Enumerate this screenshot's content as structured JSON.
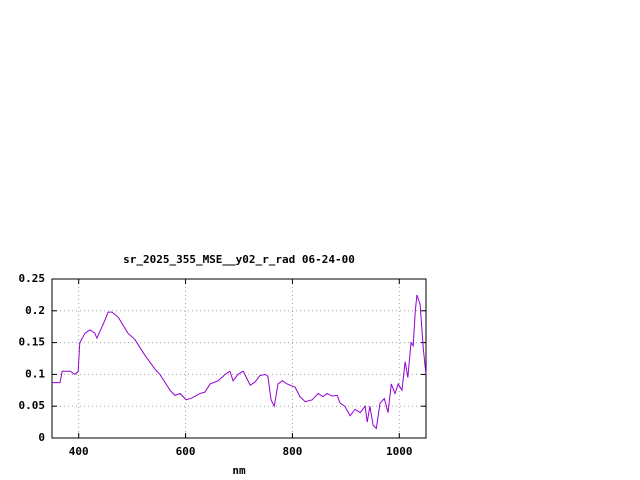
{
  "chart_data": {
    "type": "line",
    "title": "sr_2025_355_MSE__y02_r_rad 06-24-00",
    "xlabel": "nm",
    "xlim": [
      350,
      1050
    ],
    "xticks": [
      400,
      600,
      800,
      1000
    ],
    "ylim": [
      0,
      0.25
    ],
    "yticks": [
      0,
      0.05,
      0.1,
      0.15,
      0.2,
      0.25
    ],
    "grid": true,
    "series": [
      {
        "color": "#9400d3",
        "x": [
          350,
          365,
          369,
          384,
          393,
          399,
          402,
          412,
          421,
          430,
          434,
          449,
          455,
          462,
          474,
          481,
          492,
          505,
          524,
          543,
          552,
          571,
          580,
          590,
          601,
          612,
          627,
          636,
          646,
          661,
          674,
          683,
          689,
          698,
          708,
          721,
          730,
          739,
          749,
          754,
          760,
          766,
          773,
          781,
          790,
          805,
          814,
          824,
          837,
          848,
          857,
          865,
          874,
          884,
          889,
          898,
          908,
          917,
          927,
          936,
          940,
          945,
          951,
          957,
          964,
          972,
          979,
          985,
          992,
          998,
          1005,
          1011,
          1016,
          1022,
          1026,
          1030,
          1033,
          1039,
          1045,
          1050
        ],
        "values": [
          0.087,
          0.087,
          0.105,
          0.105,
          0.1,
          0.105,
          0.15,
          0.165,
          0.17,
          0.165,
          0.157,
          0.185,
          0.198,
          0.198,
          0.19,
          0.18,
          0.165,
          0.155,
          0.13,
          0.108,
          0.1,
          0.075,
          0.067,
          0.07,
          0.06,
          0.063,
          0.07,
          0.072,
          0.085,
          0.09,
          0.1,
          0.105,
          0.09,
          0.1,
          0.105,
          0.083,
          0.088,
          0.098,
          0.1,
          0.097,
          0.06,
          0.05,
          0.085,
          0.09,
          0.085,
          0.08,
          0.065,
          0.057,
          0.06,
          0.07,
          0.065,
          0.07,
          0.066,
          0.067,
          0.055,
          0.05,
          0.035,
          0.045,
          0.04,
          0.05,
          0.025,
          0.05,
          0.02,
          0.015,
          0.055,
          0.062,
          0.04,
          0.085,
          0.07,
          0.085,
          0.075,
          0.12,
          0.095,
          0.15,
          0.145,
          0.2,
          0.225,
          0.21,
          0.14,
          0.1
        ]
      }
    ]
  }
}
